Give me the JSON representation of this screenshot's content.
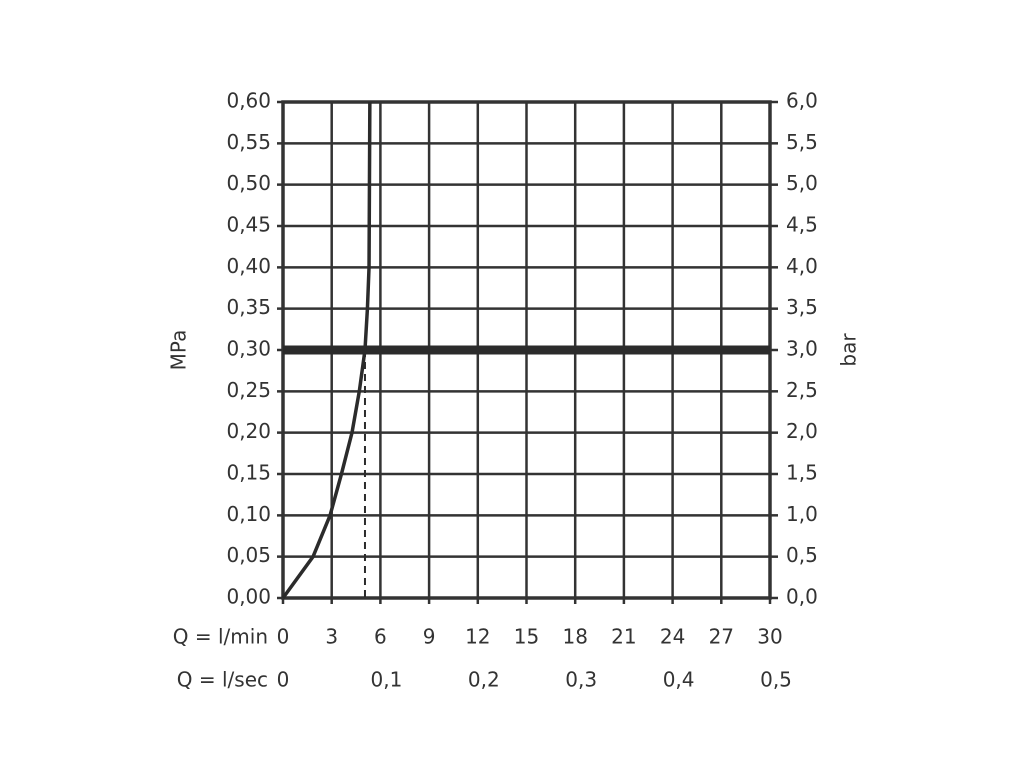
{
  "chart_data": {
    "type": "line",
    "ylabel": "MPa",
    "y2label": "bar",
    "xlabel": "Q = l/min",
    "x2label": "Q = l/sec",
    "xlim": [
      0,
      30
    ],
    "xticks": [
      0,
      3,
      6,
      9,
      12,
      15,
      18,
      21,
      24,
      27,
      30
    ],
    "x2lim": [
      0,
      0.5
    ],
    "x2ticks": [
      0,
      {
        "value": 0.1,
        "label": "0,1"
      },
      {
        "value": 0.2,
        "label": "0,2"
      },
      {
        "value": 0.3,
        "label": "0,3"
      },
      {
        "value": 0.4,
        "label": "0,4"
      },
      {
        "value": 0.5,
        "label": "0,5"
      }
    ],
    "ylim": [
      0,
      0.6
    ],
    "yticks": [
      {
        "value": 0,
        "label": "0,00"
      },
      {
        "value": 0.05,
        "label": "0,05"
      },
      {
        "value": 0.1,
        "label": "0,10"
      },
      {
        "value": 0.15,
        "label": "0,15"
      },
      {
        "value": 0.2,
        "label": "0,20"
      },
      {
        "value": 0.25,
        "label": "0,25"
      },
      {
        "value": 0.3,
        "label": "0,30"
      },
      {
        "value": 0.35,
        "label": "0,35"
      },
      {
        "value": 0.4,
        "label": "0,40"
      },
      {
        "value": 0.45,
        "label": "0,45"
      },
      {
        "value": 0.5,
        "label": "0,50"
      },
      {
        "value": 0.55,
        "label": "0,55"
      },
      {
        "value": 0.6,
        "label": "0,60"
      }
    ],
    "y2lim": [
      0,
      6
    ],
    "y2ticks": [
      {
        "value": 0,
        "label": "0,0"
      },
      {
        "value": 0.5,
        "label": "0,5"
      },
      {
        "value": 1,
        "label": "1,0"
      },
      {
        "value": 1.5,
        "label": "1,5"
      },
      {
        "value": 2,
        "label": "2,0"
      },
      {
        "value": 2.5,
        "label": "2,5"
      },
      {
        "value": 3,
        "label": "3,0"
      },
      {
        "value": 3.5,
        "label": "3,5"
      },
      {
        "value": 4,
        "label": "4,0"
      },
      {
        "value": 4.5,
        "label": "4,5"
      },
      {
        "value": 5,
        "label": "5,0"
      },
      {
        "value": 5.5,
        "label": "5,5"
      },
      {
        "value": 6,
        "label": "6,0"
      }
    ],
    "grid": true,
    "series": [
      {
        "color": "#2b2b2b",
        "x": [
          0,
          1.85,
          2.9,
          3.6,
          4.25,
          4.7,
          5.05,
          5.2,
          5.3,
          5.35
        ],
        "values": [
          0,
          0.05,
          0.1,
          0.15,
          0.2,
          0.25,
          0.3,
          0.35,
          0.4,
          0.6
        ]
      }
    ],
    "operating_point": {
      "x": 5.05,
      "y": 0.3
    }
  }
}
